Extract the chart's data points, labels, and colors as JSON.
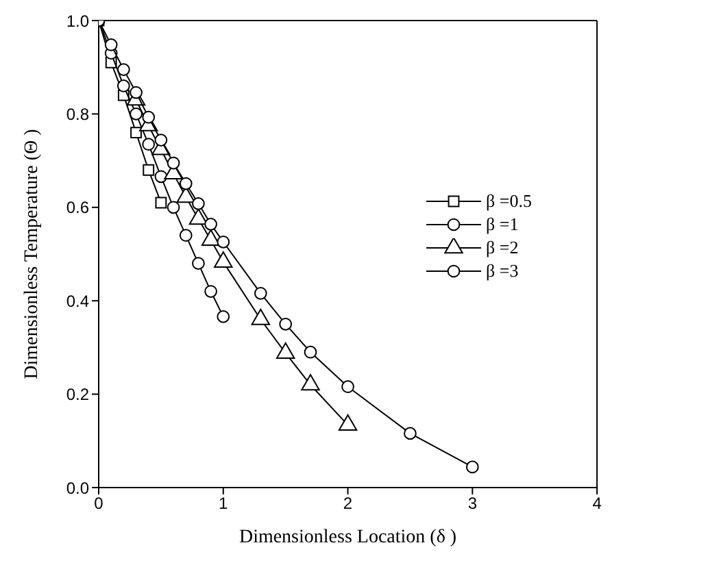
{
  "chart_data": {
    "type": "line",
    "xlabel": "Dimensionless Location (δ )",
    "ylabel": "Dimensionless Temperature (Θ )",
    "xlim": [
      0,
      4
    ],
    "xticks": [
      0,
      1,
      2,
      3,
      4
    ],
    "ylim": [
      0,
      1
    ],
    "yticks": [
      {
        "value": 0,
        "label": "0.0"
      },
      {
        "value": 0.2,
        "label": "0.2"
      },
      {
        "value": 0.4,
        "label": "0.4"
      },
      {
        "value": 0.6,
        "label": "0.6"
      },
      {
        "value": 0.8,
        "label": "0.8"
      },
      {
        "value": 1,
        "label": "1.0"
      }
    ],
    "grid": false,
    "legend": "right",
    "line_style": "solid",
    "series": [
      {
        "name": "β =0.5",
        "color": "#000000",
        "marker": "square",
        "x": [
          0,
          0.1,
          0.2,
          0.3,
          0.4,
          0.5
        ],
        "values": [
          1.0,
          0.91,
          0.84,
          0.76,
          0.68,
          0.61
        ]
      },
      {
        "name": "β =1",
        "color": "#000000",
        "marker": "circle",
        "x": [
          0,
          0.1,
          0.2,
          0.3,
          0.4,
          0.5,
          0.6,
          0.7,
          0.8,
          0.9,
          1.0
        ],
        "values": [
          1.0,
          0.93,
          0.86,
          0.8,
          0.735,
          0.666,
          0.6,
          0.54,
          0.48,
          0.42,
          0.366
        ]
      },
      {
        "name": "β =2",
        "color": "#000000",
        "marker": "triangle",
        "x": [
          0.3,
          0.4,
          0.5,
          0.6,
          0.7,
          0.8,
          0.9,
          1.0,
          1.3,
          1.5,
          1.7,
          2.0
        ],
        "values": [
          0.83,
          0.775,
          0.724,
          0.672,
          0.622,
          0.575,
          0.53,
          0.483,
          0.36,
          0.288,
          0.22,
          0.134
        ]
      },
      {
        "name": "β =3",
        "color": "#000000",
        "marker": "circle",
        "x": [
          0,
          0.1,
          0.2,
          0.3,
          0.4,
          0.5,
          0.6,
          0.7,
          0.8,
          0.9,
          1.0,
          1.3,
          1.5,
          1.7,
          2.0,
          2.5,
          3.0
        ],
        "values": [
          1.0,
          0.948,
          0.895,
          0.846,
          0.793,
          0.744,
          0.695,
          0.651,
          0.608,
          0.564,
          0.526,
          0.416,
          0.35,
          0.29,
          0.216,
          0.116,
          0.044
        ]
      }
    ]
  }
}
